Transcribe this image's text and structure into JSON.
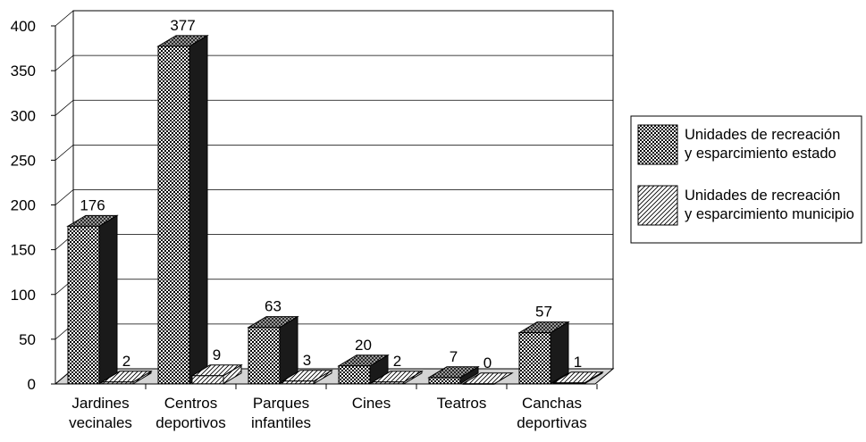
{
  "chart_data": {
    "type": "bar",
    "title": "",
    "xlabel": "",
    "ylabel": "",
    "ylim": [
      0,
      400
    ],
    "yticks": [
      0,
      50,
      100,
      150,
      200,
      250,
      300,
      350,
      400
    ],
    "grid": true,
    "legend_position": "right",
    "categories": [
      [
        "Jardines",
        "vecinales"
      ],
      [
        "Centros",
        "deportivos"
      ],
      [
        "Parques",
        "infantiles"
      ],
      [
        "Cines"
      ],
      [
        "Teatros"
      ],
      [
        "Canchas",
        "deportivas"
      ]
    ],
    "series": [
      {
        "name": [
          "Unidades de recreación",
          "y esparcimiento estado"
        ],
        "values": [
          176,
          377,
          63,
          20,
          7,
          57
        ],
        "pattern": "checker"
      },
      {
        "name": [
          "Unidades de recreación",
          "y esparcimiento municipio"
        ],
        "values": [
          2,
          9,
          3,
          2,
          0,
          1
        ],
        "pattern": "hatch"
      }
    ],
    "colors": {
      "bar_side": "#1a1a1a",
      "floor": "#d4d4d4",
      "axis": "#000000"
    }
  }
}
